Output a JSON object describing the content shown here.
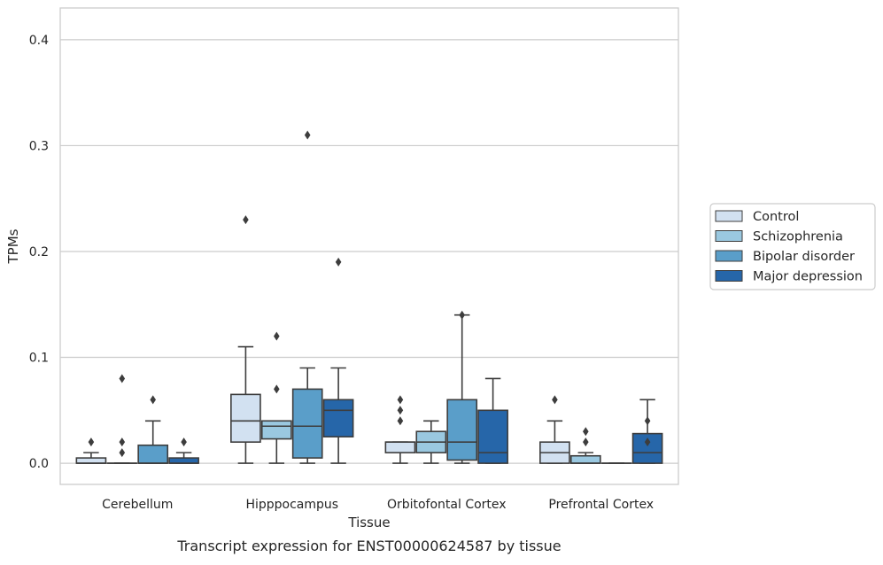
{
  "chart_data": {
    "type": "box",
    "caption": "Transcript expression for ENST00000624587 by tissue",
    "xlabel": "Tissue",
    "ylabel": "TPMs",
    "ylim": [
      -0.02,
      0.43
    ],
    "yticks": [
      0.0,
      0.1,
      0.2,
      0.3,
      0.4
    ],
    "ytick_labels": [
      "0.0",
      "0.1",
      "0.2",
      "0.3",
      "0.4"
    ],
    "grid": "horizontal",
    "legend_position": "right",
    "categories": [
      "Cerebellum",
      "Hipppocampus",
      "Orbitofontal Cortex",
      "Prefrontal Cortex"
    ],
    "series": [
      {
        "name": "Control",
        "color": "#d2e1f1",
        "boxes": [
          {
            "whislo": 0.0,
            "q1": 0.0,
            "med": 0.0,
            "q3": 0.005,
            "whishi": 0.01,
            "fliers": [
              0.02
            ]
          },
          {
            "whislo": 0.0,
            "q1": 0.02,
            "med": 0.04,
            "q3": 0.065,
            "whishi": 0.11,
            "fliers": [
              0.23
            ]
          },
          {
            "whislo": 0.0,
            "q1": 0.01,
            "med": 0.02,
            "q3": 0.02,
            "whishi": 0.02,
            "fliers": [
              0.04,
              0.05,
              0.06
            ]
          },
          {
            "whislo": 0.0,
            "q1": 0.0,
            "med": 0.01,
            "q3": 0.02,
            "whishi": 0.04,
            "fliers": [
              0.06
            ]
          }
        ]
      },
      {
        "name": "Schizophrenia",
        "color": "#9ac8e0",
        "boxes": [
          {
            "whislo": 0.0,
            "q1": 0.0,
            "med": 0.0,
            "q3": 0.0,
            "whishi": 0.0,
            "fliers": [
              0.01,
              0.02,
              0.08
            ]
          },
          {
            "whislo": 0.0,
            "q1": 0.023,
            "med": 0.035,
            "q3": 0.04,
            "whishi": 0.04,
            "fliers": [
              0.07,
              0.12
            ]
          },
          {
            "whislo": 0.0,
            "q1": 0.01,
            "med": 0.02,
            "q3": 0.03,
            "whishi": 0.04,
            "fliers": []
          },
          {
            "whislo": 0.0,
            "q1": 0.0,
            "med": 0.0,
            "q3": 0.007,
            "whishi": 0.01,
            "fliers": [
              0.02,
              0.03
            ]
          }
        ]
      },
      {
        "name": "Bipolar disorder",
        "color": "#5a9ec9",
        "boxes": [
          {
            "whislo": 0.0,
            "q1": 0.0,
            "med": 0.0,
            "q3": 0.017,
            "whishi": 0.04,
            "fliers": [
              0.06
            ]
          },
          {
            "whislo": 0.0,
            "q1": 0.005,
            "med": 0.035,
            "q3": 0.07,
            "whishi": 0.09,
            "fliers": [
              0.31
            ]
          },
          {
            "whislo": 0.0,
            "q1": 0.003,
            "med": 0.02,
            "q3": 0.06,
            "whishi": 0.14,
            "fliers": [
              0.14
            ]
          },
          {
            "whislo": 0.0,
            "q1": 0.0,
            "med": 0.0,
            "q3": 0.0,
            "whishi": 0.0,
            "fliers": []
          }
        ]
      },
      {
        "name": "Major depression",
        "color": "#2666a9",
        "boxes": [
          {
            "whislo": 0.0,
            "q1": 0.0,
            "med": 0.0,
            "q3": 0.005,
            "whishi": 0.01,
            "fliers": [
              0.02
            ]
          },
          {
            "whislo": 0.0,
            "q1": 0.025,
            "med": 0.05,
            "q3": 0.06,
            "whishi": 0.09,
            "fliers": [
              0.19
            ]
          },
          {
            "whislo": 0.0,
            "q1": 0.0,
            "med": 0.01,
            "q3": 0.05,
            "whishi": 0.08,
            "fliers": []
          },
          {
            "whislo": 0.0,
            "q1": 0.0,
            "med": 0.01,
            "q3": 0.028,
            "whishi": 0.06,
            "fliers": [
              0.02,
              0.04
            ]
          }
        ]
      }
    ]
  }
}
